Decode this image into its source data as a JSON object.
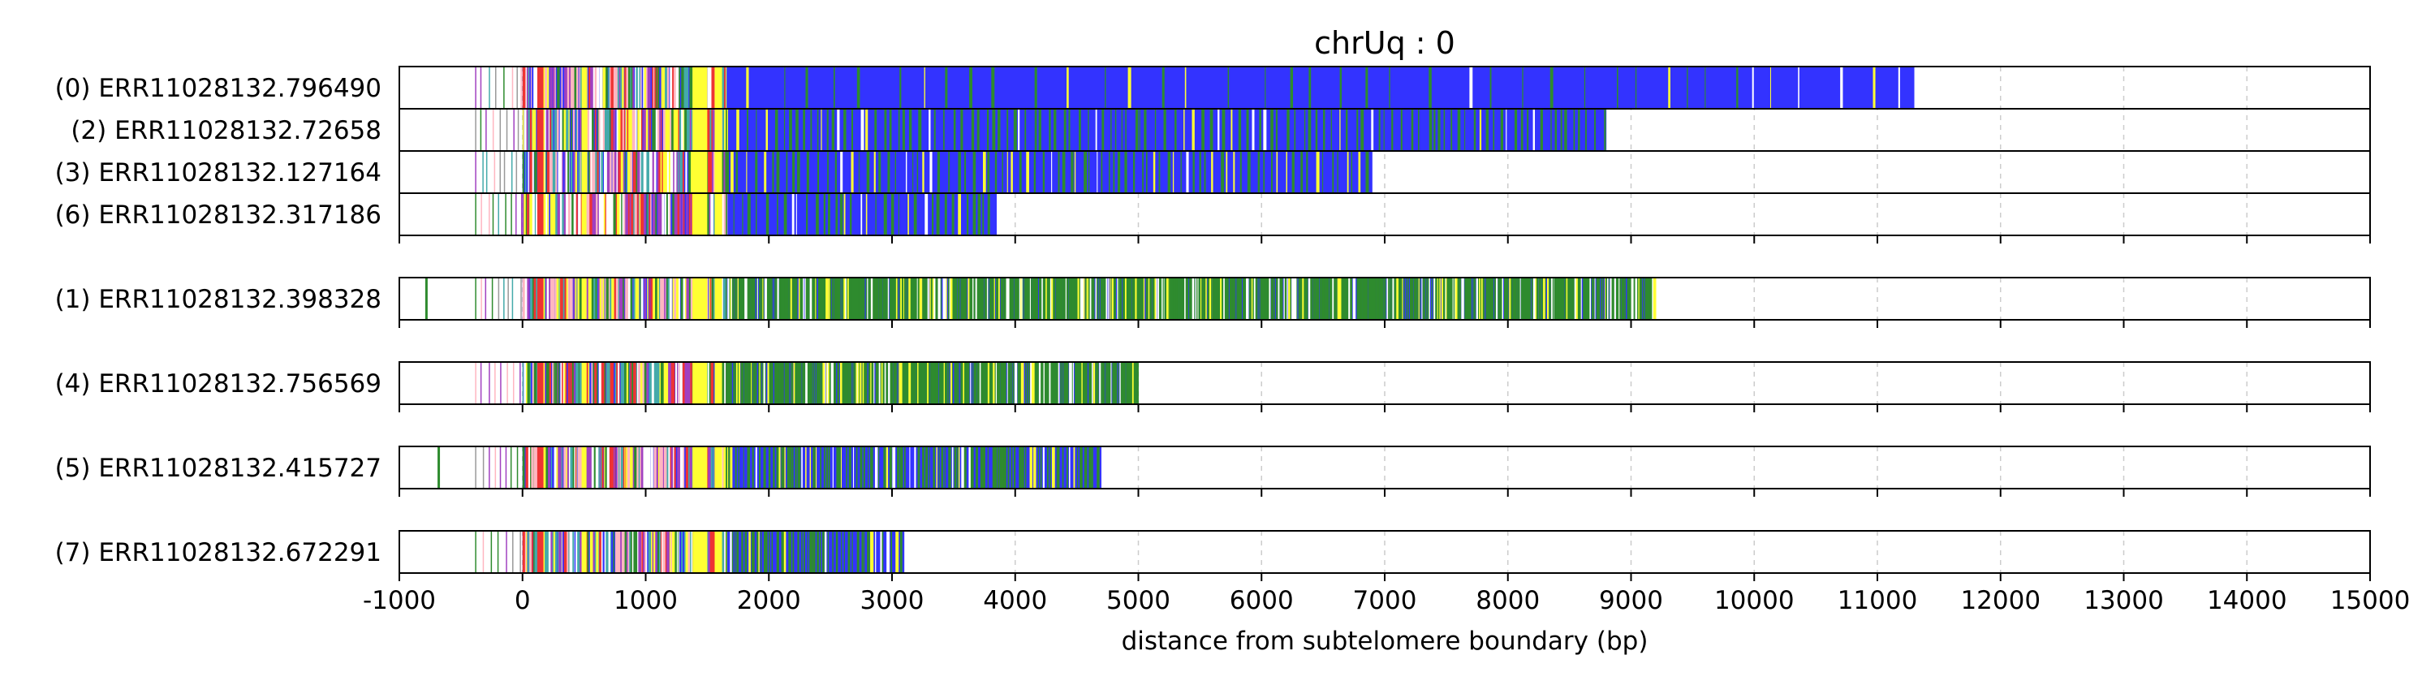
{
  "chart_data": {
    "type": "bar",
    "title": "chrUq : 0",
    "xlabel": "distance from subtelomere boundary (bp)",
    "ylabel": "",
    "xlim": [
      -1000,
      15000
    ],
    "xticks": [
      -1000,
      0,
      1000,
      2000,
      3000,
      4000,
      5000,
      6000,
      7000,
      8000,
      9000,
      10000,
      11000,
      12000,
      13000,
      14000,
      15000
    ],
    "xtick_labels": [
      "-1000",
      "0",
      "1000",
      "2000",
      "3000",
      "4000",
      "5000",
      "6000",
      "7000",
      "8000",
      "9000",
      "10000",
      "11000",
      "12000",
      "13000",
      "14000",
      "15000"
    ],
    "grid": "vertical dashed",
    "colors": {
      "blue": "#3333ff",
      "green": "#2e8b2e",
      "yellow": "#ffff33",
      "red": "#ee3333",
      "pink": "#ffb6c1",
      "purple": "#a040c0",
      "teal": "#44aaaa",
      "gray": "#999999",
      "white": "#ffffff",
      "axis": "#000000",
      "grid": "#cccccc"
    },
    "groups": [
      {
        "reads": [
          {
            "label": "(0) ERR11028132.796490",
            "end": 11300,
            "profile": "sparse"
          },
          {
            "label": "(2) ERR11028132.72658",
            "end": 8800,
            "profile": "light"
          },
          {
            "label": "(3) ERR11028132.127164",
            "end": 6900,
            "profile": "light"
          },
          {
            "label": "(6) ERR11028132.317186",
            "end": 3850,
            "profile": "light"
          }
        ]
      },
      {
        "reads": [
          {
            "label": "(1) ERR11028132.398328",
            "end": 9200,
            "profile": "dense",
            "extra_marks": [
              -780
            ]
          }
        ]
      },
      {
        "reads": [
          {
            "label": "(4) ERR11028132.756569",
            "end": 5000,
            "profile": "dense"
          }
        ]
      },
      {
        "reads": [
          {
            "label": "(5) ERR11028132.415727",
            "end": 4700,
            "profile": "medium",
            "extra_marks": [
              -680
            ]
          }
        ]
      },
      {
        "reads": [
          {
            "label": "(7) ERR11028132.672291",
            "end": 3100,
            "profile": "medium"
          }
        ]
      }
    ]
  }
}
